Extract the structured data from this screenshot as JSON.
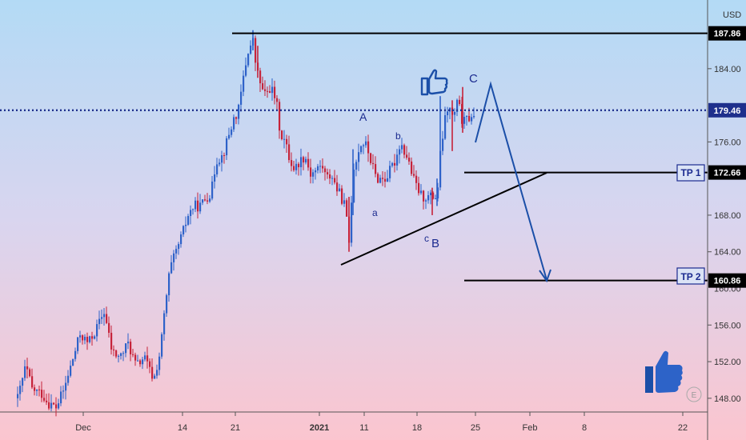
{
  "chart_data": {
    "type": "candlestick",
    "currency": "USD",
    "ylim": [
      146.5,
      191.5
    ],
    "y_ticks": [
      148,
      152,
      156,
      164,
      168,
      176,
      184
    ],
    "y_ticks_hidden": [
      "160.00"
    ],
    "x_ticks": [
      {
        "label": "Dec",
        "bold": false
      },
      {
        "label": "14",
        "bold": false
      },
      {
        "label": "21",
        "bold": false
      },
      {
        "label": "2021",
        "bold": true
      },
      {
        "label": "11",
        "bold": false
      },
      {
        "label": "18",
        "bold": false
      },
      {
        "label": "25",
        "bold": false
      },
      {
        "label": "Feb",
        "bold": false
      },
      {
        "label": "8",
        "bold": false
      },
      {
        "label": "22",
        "bold": false
      }
    ],
    "price_levels": [
      {
        "label": "187.86",
        "value": 187.86,
        "style": "solid"
      },
      {
        "label": "179.46",
        "value": 179.46,
        "style": "dotted"
      },
      {
        "label": "172.66",
        "value": 172.66,
        "style": "solid",
        "tp": "TP 1"
      },
      {
        "label": "160.86",
        "value": 160.86,
        "style": "solid",
        "tp": "TP 2"
      }
    ],
    "wave_labels": [
      "A",
      "B",
      "C",
      "a",
      "b",
      "c"
    ],
    "watermark": "E",
    "colors": {
      "up": "#2e62c9",
      "down": "#c6233a",
      "annotation": "#1b4fa8",
      "line": "#000000",
      "bg_top": "#b3daf5",
      "bg_bottom": "#fbc5cf"
    }
  }
}
